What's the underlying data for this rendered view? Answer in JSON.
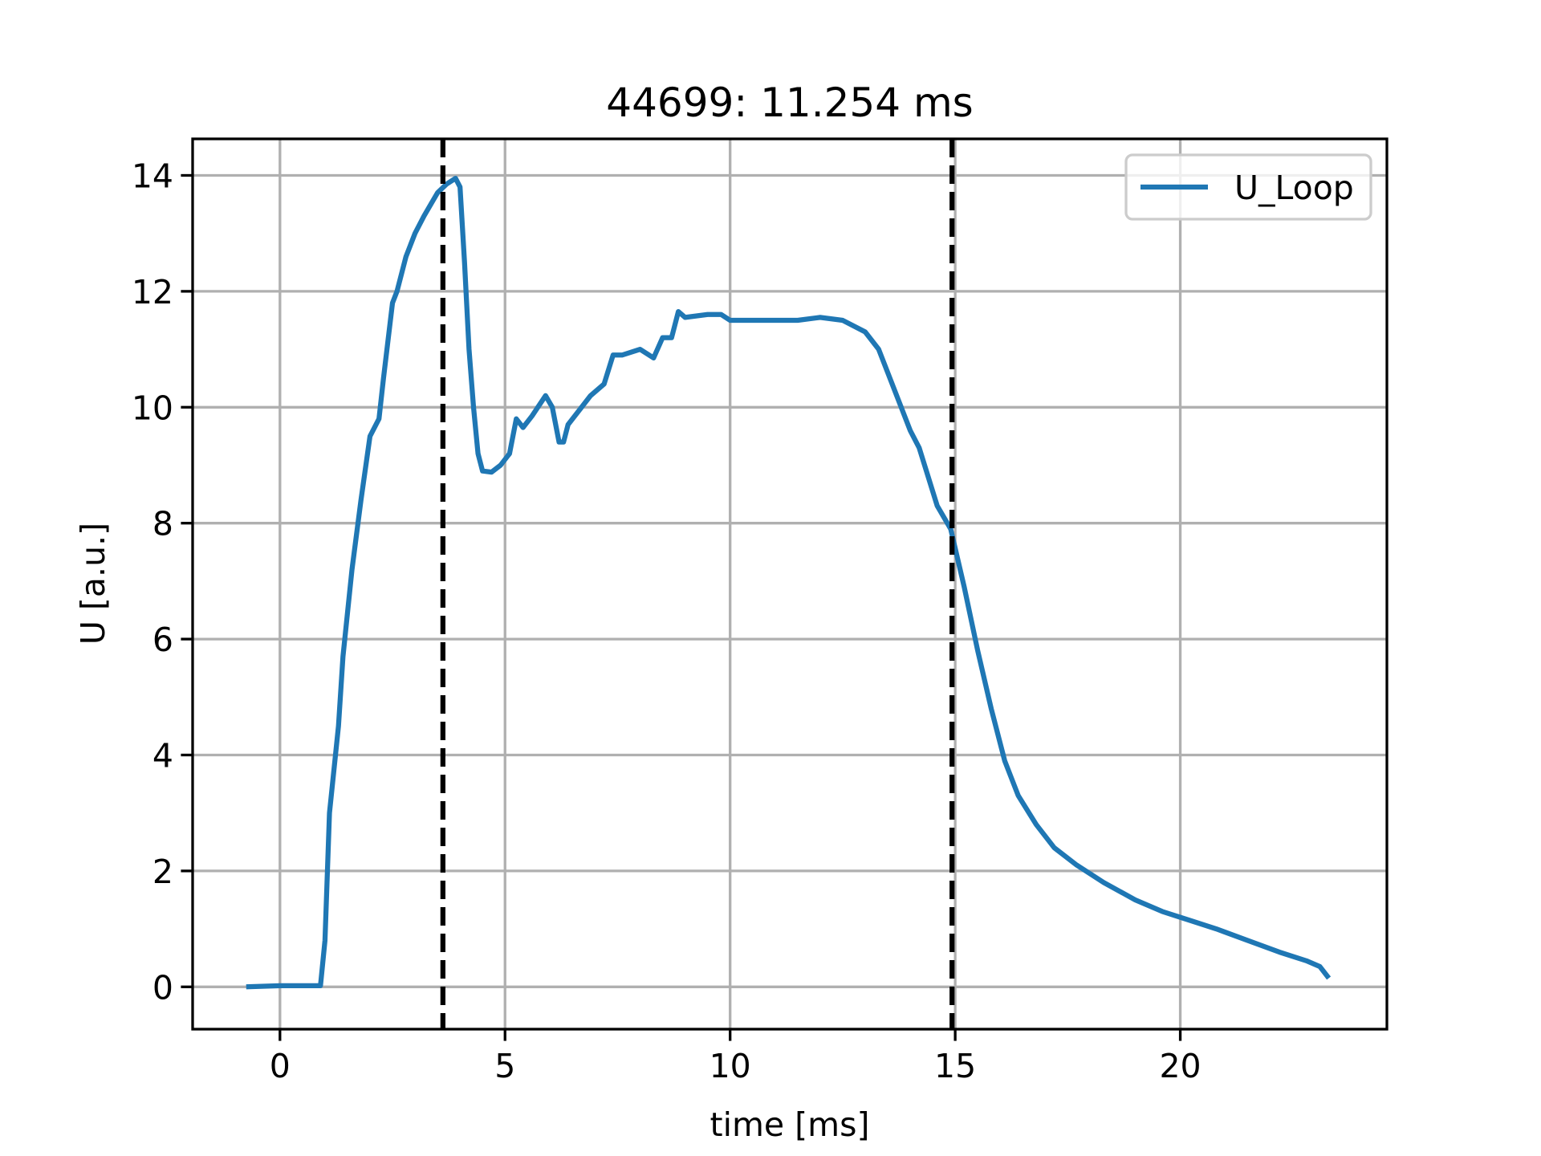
{
  "chart_data": {
    "type": "line",
    "title": "44699: 11.254 ms",
    "xlabel": "time [ms]",
    "ylabel": "U [a.u.]",
    "xlim": [
      -1.94,
      24.59
    ],
    "ylim": [
      -0.73,
      14.63
    ],
    "xticks": [
      0,
      5,
      10,
      15,
      20
    ],
    "yticks": [
      0,
      2,
      4,
      6,
      8,
      10,
      12,
      14
    ],
    "grid": true,
    "legend": "upper right",
    "vlines": [
      3.62,
      14.93
    ],
    "x": [
      -0.75,
      0,
      0.9,
      1.0,
      1.1,
      1.3,
      1.4,
      1.6,
      1.8,
      2.0,
      2.2,
      2.3,
      2.5,
      2.6,
      2.8,
      3.0,
      3.2,
      3.5,
      3.7,
      3.9,
      4.0,
      4.1,
      4.2,
      4.3,
      4.4,
      4.5,
      4.7,
      4.9,
      5.1,
      5.25,
      5.4,
      5.6,
      5.9,
      6.05,
      6.2,
      6.3,
      6.4,
      6.7,
      6.9,
      7.2,
      7.4,
      7.6,
      8.0,
      8.3,
      8.5,
      8.7,
      8.85,
      9.0,
      9.5,
      9.8,
      10.0,
      10.5,
      11.0,
      11.5,
      12.0,
      12.5,
      13.0,
      13.3,
      13.6,
      13.8,
      14.0,
      14.2,
      14.4,
      14.6,
      14.9,
      15.2,
      15.5,
      15.8,
      16.1,
      16.4,
      16.8,
      17.2,
      17.7,
      18.3,
      19.0,
      19.6,
      20.2,
      20.8,
      21.5,
      22.2,
      22.8,
      23.1,
      23.3
    ],
    "series": [
      {
        "name": "U_Loop",
        "color": "#1f77b4",
        "values": [
          0,
          0.02,
          0.02,
          0.8,
          3,
          4.5,
          5.7,
          7.2,
          8.4,
          9.5,
          9.8,
          10.5,
          11.8,
          12.0,
          12.6,
          13.0,
          13.3,
          13.7,
          13.85,
          13.95,
          13.8,
          12.5,
          11,
          10,
          9.2,
          8.9,
          8.88,
          9.0,
          9.2,
          9.8,
          9.65,
          9.85,
          10.2,
          10.0,
          9.4,
          9.4,
          9.7,
          10.0,
          10.2,
          10.4,
          10.9,
          10.9,
          11.0,
          10.85,
          11.2,
          11.2,
          11.65,
          11.55,
          11.6,
          11.6,
          11.5,
          11.5,
          11.5,
          11.5,
          11.55,
          11.5,
          11.3,
          11.0,
          10.4,
          10.0,
          9.6,
          9.3,
          8.8,
          8.3,
          7.9,
          6.9,
          5.8,
          4.8,
          3.9,
          3.3,
          2.8,
          2.4,
          2.1,
          1.8,
          1.5,
          1.3,
          1.15,
          1.0,
          0.8,
          0.6,
          0.45,
          0.35,
          0.15
        ]
      }
    ]
  }
}
